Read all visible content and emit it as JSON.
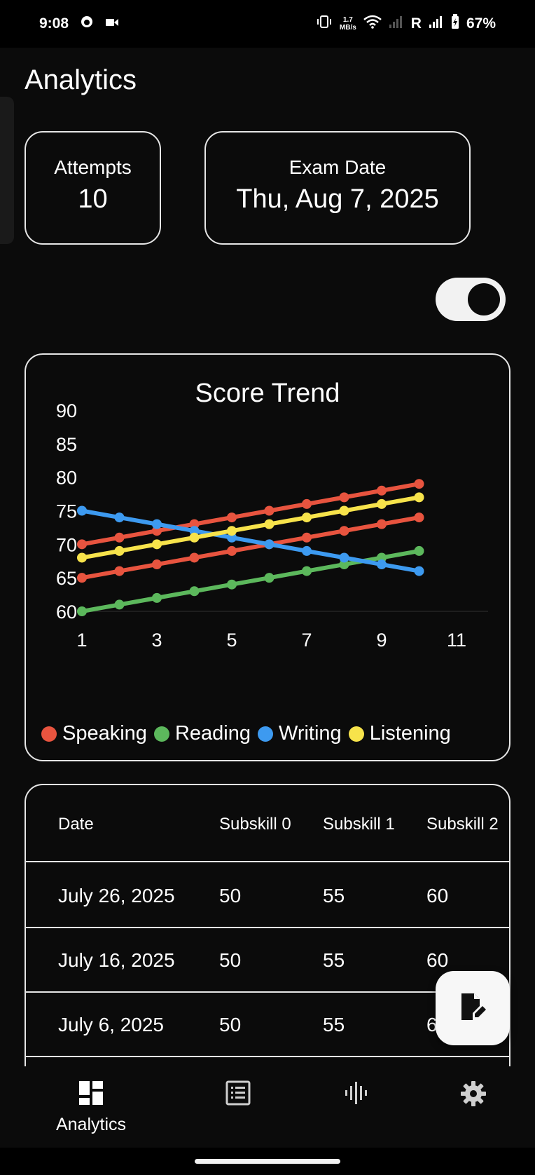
{
  "status_bar": {
    "time": "9:08",
    "net_speed_value": "1.7",
    "net_speed_unit": "MB/s",
    "roaming": "R",
    "battery": "67%",
    "icons": [
      "camera-icon",
      "video-icon",
      "vibrate-icon",
      "wifi-icon",
      "signal-icon",
      "battery-icon"
    ]
  },
  "page": {
    "title": "Analytics"
  },
  "stats": {
    "attempts_label": "Attempts",
    "attempts_value": "10",
    "exam_label": "Exam Date",
    "exam_value": "Thu, Aug 7, 2025"
  },
  "toggle": {
    "on": true
  },
  "chart_data": {
    "type": "line",
    "title": "Score Trend",
    "xlabel": "",
    "ylabel": "",
    "x": [
      1,
      2,
      3,
      4,
      5,
      6,
      7,
      8,
      9,
      10
    ],
    "xlim": [
      1,
      11
    ],
    "ylim": [
      60,
      90
    ],
    "x_ticks": [
      "1",
      "3",
      "5",
      "7",
      "9",
      "11"
    ],
    "y_ticks": [
      "60",
      "65",
      "70",
      "75",
      "80",
      "85",
      "90"
    ],
    "legend_position": "bottom",
    "series": [
      {
        "name": "Speaking",
        "color": "#e8543f",
        "values": [
          70,
          71,
          72,
          73,
          74,
          75,
          76,
          77,
          78,
          79
        ]
      },
      {
        "name": "Speaking",
        "color": "#e8543f",
        "values": [
          65,
          66,
          67,
          68,
          69,
          70,
          71,
          72,
          73,
          74
        ]
      },
      {
        "name": "Reading",
        "color": "#5cb85c",
        "values": [
          60,
          61,
          62,
          63,
          64,
          65,
          66,
          67,
          68,
          69
        ]
      },
      {
        "name": "Writing",
        "color": "#3d9af0",
        "values": [
          75,
          74,
          73,
          72,
          71,
          70,
          69,
          68,
          67,
          66
        ]
      },
      {
        "name": "Listening",
        "color": "#f7e34b",
        "values": [
          68,
          69,
          70,
          71,
          72,
          73,
          74,
          75,
          76,
          77
        ]
      }
    ],
    "legend": [
      {
        "name": "Speaking",
        "color": "#e8543f"
      },
      {
        "name": "Reading",
        "color": "#5cb85c"
      },
      {
        "name": "Writing",
        "color": "#3d9af0"
      },
      {
        "name": "Listening",
        "color": "#f7e34b"
      }
    ]
  },
  "table": {
    "headers": [
      "Date",
      "Subskill 0",
      "Subskill 1",
      "Subskill 2"
    ],
    "rows": [
      [
        "July 26, 2025",
        "50",
        "55",
        "60"
      ],
      [
        "July 16, 2025",
        "50",
        "55",
        "60"
      ],
      [
        "July 6, 2025",
        "50",
        "55",
        "60"
      ]
    ]
  },
  "fab": {
    "icon": "edit-note-icon"
  },
  "bottom_nav": {
    "items": [
      {
        "label": "Analytics",
        "icon": "dashboard-icon",
        "active": true
      },
      {
        "label": "",
        "icon": "list-icon",
        "active": false
      },
      {
        "label": "",
        "icon": "audio-wave-icon",
        "active": false
      },
      {
        "label": "",
        "icon": "gear-icon",
        "active": false
      }
    ]
  }
}
